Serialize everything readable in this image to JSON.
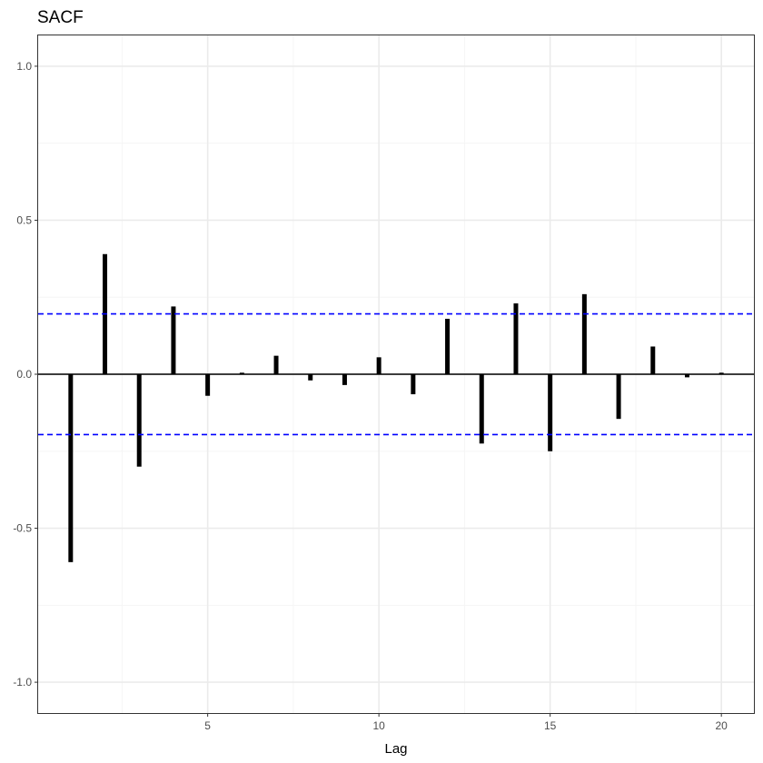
{
  "chart_data": {
    "type": "bar",
    "title": "SACF",
    "xlabel": "Lag",
    "ylabel": "",
    "x": [
      1,
      2,
      3,
      4,
      5,
      6,
      7,
      8,
      9,
      10,
      11,
      12,
      13,
      14,
      15,
      16,
      17,
      18,
      19,
      20
    ],
    "values": [
      -0.61,
      0.39,
      -0.3,
      0.22,
      -0.07,
      0.005,
      0.06,
      -0.02,
      -0.035,
      0.055,
      -0.065,
      0.18,
      -0.225,
      0.23,
      -0.25,
      0.26,
      -0.145,
      0.09,
      -0.01,
      0.005
    ],
    "xlim": [
      0.05,
      20.95
    ],
    "ylim": [
      -1.1,
      1.1
    ],
    "x_major_ticks": [
      5,
      10,
      15,
      20
    ],
    "x_tick_labels": [
      "5",
      "10",
      "15",
      "20"
    ],
    "y_major_ticks": [
      -1.0,
      -0.5,
      0.0,
      0.5,
      1.0
    ],
    "y_tick_labels": [
      "-1.0",
      "-0.5",
      "0.0",
      "0.5",
      "1.0"
    ],
    "confidence_bounds": [
      0.196,
      -0.196
    ],
    "zero_line": 0,
    "grid": true,
    "legend": "none",
    "colors": {
      "bars": "#000000",
      "confidence_lines": "#0000ff",
      "zero_line": "#000000",
      "grid_major": "#ebebeb",
      "grid_minor": "#f5f5f5",
      "panel_border": "#333333"
    }
  }
}
